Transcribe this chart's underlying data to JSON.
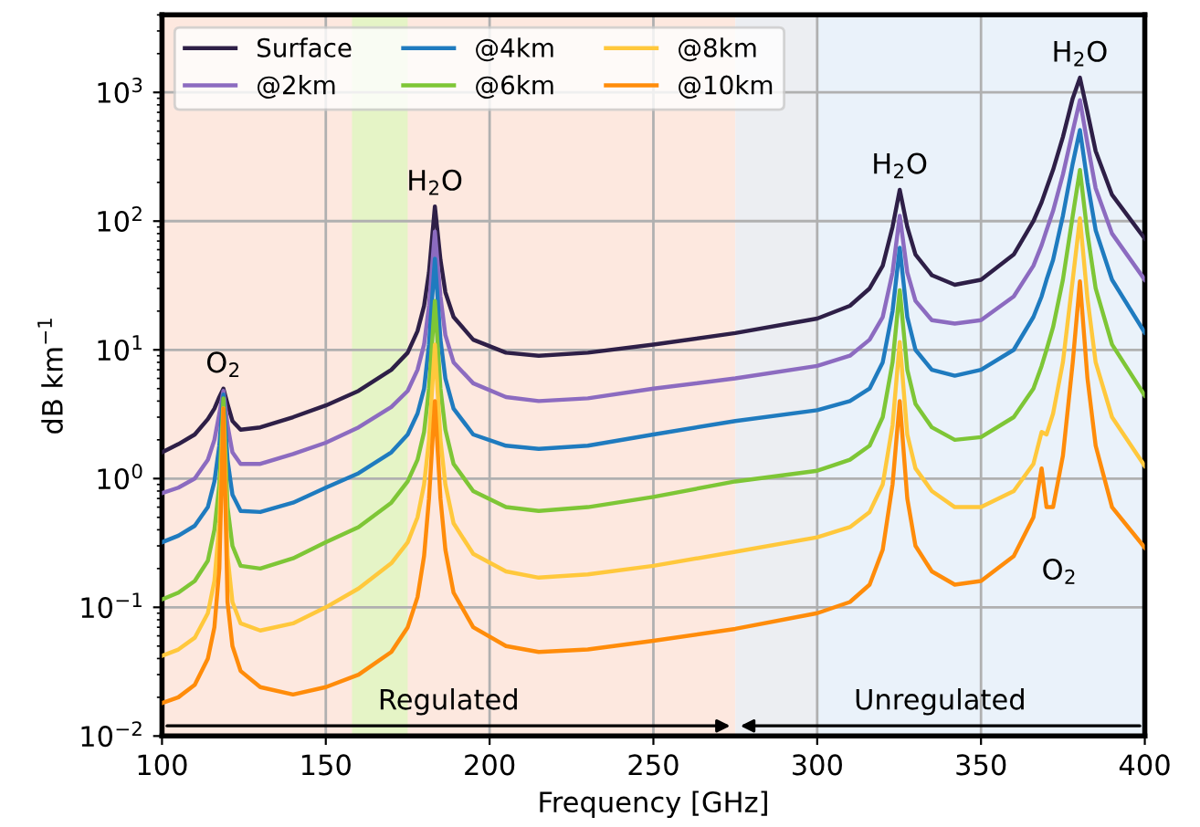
{
  "chart_data": {
    "type": "line",
    "xlabel": "Frequency [GHz]",
    "ylabel": "dB km$^{−1}$",
    "log": "y",
    "grid": true,
    "legend": "top left",
    "xlim": [
      100,
      400
    ],
    "xticks": [
      100,
      150,
      200,
      250,
      300,
      350,
      400
    ],
    "ylim": [
      0.01,
      4000
    ],
    "yticks": [
      {
        "value": 0.01,
        "label": "10$^{−2}$"
      },
      {
        "value": 0.1,
        "label": "10$^{−1}$"
      },
      {
        "value": 1,
        "label": "10$^{0}$"
      },
      {
        "value": 10,
        "label": "10$^{1}$"
      },
      {
        "value": 100,
        "label": "10$^{2}$"
      },
      {
        "value": 1000,
        "label": "10$^{3}$"
      }
    ],
    "x": [
      100,
      105,
      110,
      114,
      116,
      117.5,
      118.75,
      120,
      121.5,
      124,
      130,
      140,
      150,
      160,
      170,
      175,
      178,
      180,
      181.5,
      183.3,
      185,
      186.5,
      189,
      195,
      205,
      215,
      230,
      250,
      275,
      300,
      310,
      316,
      320,
      323,
      325.2,
      327.5,
      330,
      335,
      342,
      350,
      360,
      366,
      368.5,
      370,
      372,
      375,
      378,
      380.2,
      382.5,
      385,
      390,
      400
    ],
    "series": [
      {
        "name": "Surface",
        "color": "#2e1f47",
        "values": [
          1.6,
          1.85,
          2.2,
          2.9,
          3.5,
          4.3,
          5,
          3.8,
          2.8,
          2.4,
          2.5,
          3.0,
          3.7,
          4.8,
          7,
          9.5,
          14,
          22,
          40,
          130,
          50,
          28,
          18,
          12,
          9.5,
          9,
          9.5,
          11,
          13.5,
          17.5,
          22,
          30,
          45,
          90,
          175,
          90,
          55,
          38,
          32,
          35,
          55,
          100,
          140,
          180,
          250,
          450,
          900,
          1300,
          700,
          350,
          160,
          73
        ]
      },
      {
        "name": "@2km",
        "color": "#8c6bc0",
        "values": [
          0.77,
          0.85,
          1.0,
          1.4,
          2.0,
          3.2,
          4.8,
          2.6,
          1.6,
          1.3,
          1.3,
          1.55,
          1.9,
          2.5,
          3.6,
          4.8,
          7,
          11,
          22,
          83,
          26,
          13,
          8,
          5.5,
          4.3,
          4.0,
          4.2,
          5,
          6,
          7.5,
          9,
          12,
          18,
          40,
          110,
          40,
          24,
          17,
          16,
          17,
          26,
          45,
          65,
          85,
          120,
          230,
          500,
          870,
          400,
          180,
          80,
          35
        ]
      },
      {
        "name": "@4km",
        "color": "#1f7bbf",
        "values": [
          0.32,
          0.36,
          0.43,
          0.6,
          0.95,
          1.8,
          4.5,
          1.4,
          0.75,
          0.56,
          0.55,
          0.65,
          0.85,
          1.1,
          1.6,
          2.2,
          3.2,
          5,
          11,
          51,
          12,
          6,
          3.5,
          2.2,
          1.8,
          1.7,
          1.8,
          2.2,
          2.8,
          3.4,
          4,
          5,
          8,
          20,
          62,
          18,
          10,
          7,
          6.3,
          7,
          10,
          18,
          26,
          35,
          50,
          110,
          280,
          510,
          200,
          85,
          35,
          13.6
        ]
      },
      {
        "name": "@6km",
        "color": "#7ec636",
        "values": [
          0.115,
          0.13,
          0.16,
          0.23,
          0.4,
          0.9,
          4.2,
          0.6,
          0.3,
          0.21,
          0.2,
          0.24,
          0.32,
          0.42,
          0.65,
          0.95,
          1.4,
          2.3,
          5,
          24,
          5,
          2.4,
          1.3,
          0.8,
          0.6,
          0.56,
          0.6,
          0.72,
          0.95,
          1.15,
          1.4,
          1.8,
          3,
          8,
          29,
          7,
          3.8,
          2.5,
          2.0,
          2.1,
          3,
          5,
          7.5,
          10,
          15,
          35,
          110,
          250,
          80,
          30,
          11,
          4.4
        ]
      },
      {
        "name": "@8km",
        "color": "#ffc83c",
        "values": [
          0.042,
          0.047,
          0.058,
          0.09,
          0.16,
          0.45,
          3.5,
          0.25,
          0.11,
          0.075,
          0.066,
          0.075,
          0.1,
          0.14,
          0.22,
          0.32,
          0.5,
          0.9,
          2,
          11,
          2,
          0.9,
          0.45,
          0.26,
          0.19,
          0.17,
          0.18,
          0.21,
          0.27,
          0.35,
          0.42,
          0.55,
          0.9,
          2.6,
          11.5,
          2.2,
          1.2,
          0.8,
          0.6,
          0.6,
          0.8,
          1.3,
          2.3,
          2.2,
          3.2,
          8,
          35,
          105,
          25,
          8,
          3,
          1.25
        ]
      },
      {
        "name": "@10km",
        "color": "#ff8c0a",
        "values": [
          0.018,
          0.02,
          0.025,
          0.04,
          0.07,
          0.2,
          3.5,
          0.11,
          0.05,
          0.032,
          0.024,
          0.021,
          0.024,
          0.03,
          0.045,
          0.07,
          0.12,
          0.25,
          0.7,
          4,
          0.7,
          0.28,
          0.13,
          0.07,
          0.05,
          0.045,
          0.047,
          0.055,
          0.068,
          0.09,
          0.11,
          0.15,
          0.28,
          0.9,
          4,
          0.7,
          0.3,
          0.19,
          0.15,
          0.16,
          0.25,
          0.5,
          1.2,
          0.6,
          0.6,
          1.5,
          8,
          34,
          6,
          1.8,
          0.6,
          0.29
        ]
      }
    ],
    "bands": [
      {
        "axis": "x",
        "from": 100,
        "to": 275,
        "color": "#fde8df"
      },
      {
        "axis": "x",
        "from": 158,
        "to": 175,
        "color": "#e5f4c6"
      },
      {
        "axis": "x",
        "from": 275,
        "to": 300,
        "color": "#eceef2"
      },
      {
        "axis": "x",
        "from": 300,
        "to": 400,
        "color": "#eaf2fa"
      }
    ],
    "annotations": [
      "O$_{2}$",
      "H$_{2}$O",
      "H$_{2}$O",
      "H$_{2}$O",
      "O$_{2}$",
      "Regulated",
      "Unregulated"
    ]
  }
}
